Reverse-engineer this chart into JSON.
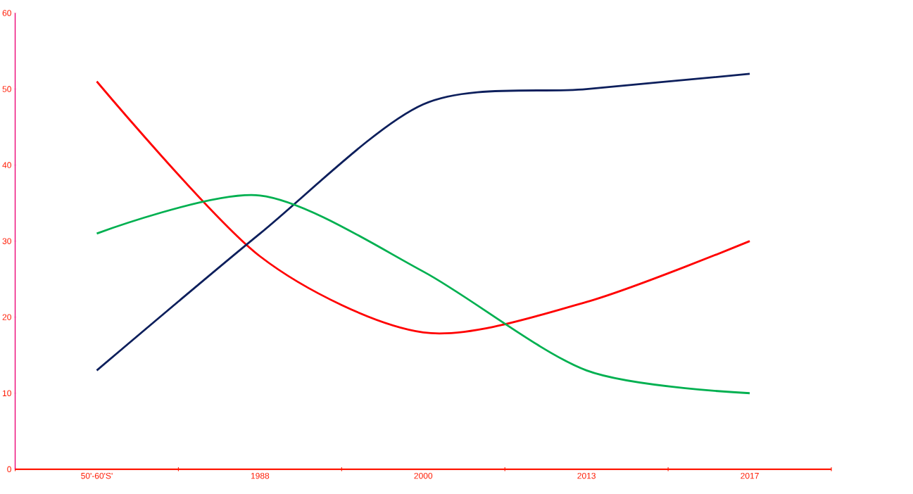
{
  "chart_data": {
    "type": "line",
    "categories": [
      "50'-60'S'",
      "1988",
      "2000",
      "2013",
      "2017"
    ],
    "series": [
      {
        "color": "#ff0000",
        "values": [
          51,
          28,
          18,
          22,
          30
        ]
      },
      {
        "color": "#0d1f5c",
        "values": [
          13,
          31,
          48,
          50,
          52
        ]
      },
      {
        "color": "#00b050",
        "values": [
          31,
          36,
          26,
          13,
          10
        ]
      }
    ],
    "ylim": [
      0,
      60
    ],
    "yticks": [
      0,
      10,
      20,
      30,
      40,
      50,
      60
    ],
    "line_style": "solid"
  }
}
